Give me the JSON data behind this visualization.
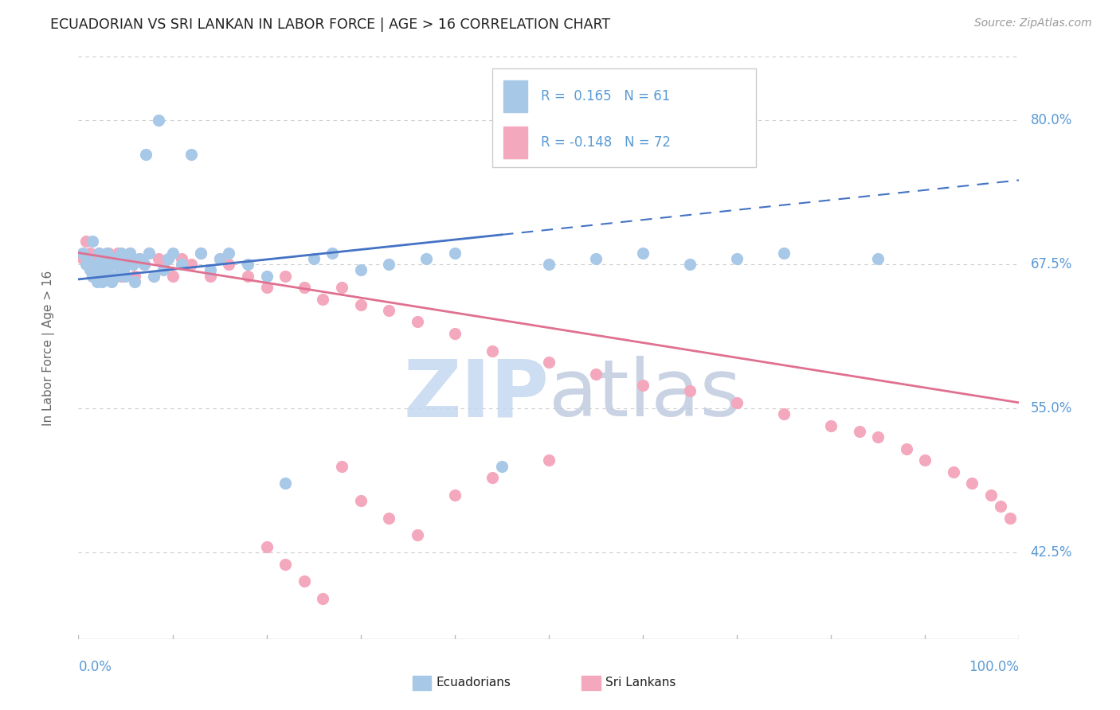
{
  "title": "ECUADORIAN VS SRI LANKAN IN LABOR FORCE | AGE > 16 CORRELATION CHART",
  "source_text": "Source: ZipAtlas.com",
  "ylabel": "In Labor Force | Age > 16",
  "xlim": [
    0.0,
    1.0
  ],
  "ylim": [
    0.35,
    0.855
  ],
  "yticks_vals": [
    0.425,
    0.55,
    0.675,
    0.8
  ],
  "ytick_labels": [
    "42.5%",
    "55.0%",
    "67.5%",
    "80.0%"
  ],
  "r_ecuador": 0.165,
  "n_ecuador": 61,
  "r_srilankan": -0.148,
  "n_srilankan": 72,
  "ecuador_color": "#a8c8e8",
  "srilankan_color": "#f4a8be",
  "trendline_ecuador_color": "#4472c4",
  "trendline_srilankan_color": "#e07090",
  "watermark_zip_color": "#c5d8f0",
  "watermark_atlas_color": "#c0cce0",
  "background_color": "#ffffff",
  "grid_color": "#cccccc",
  "axis_color": "#bbbbbb",
  "label_color": "#5b9bd5",
  "ylabel_color": "#666666",
  "title_color": "#222222",
  "source_color": "#999999",
  "legend_edge_color": "#cccccc",
  "ec_x": [
    0.005,
    0.008,
    0.01,
    0.012,
    0.015,
    0.015,
    0.018,
    0.02,
    0.02,
    0.022,
    0.025,
    0.025,
    0.028,
    0.03,
    0.03,
    0.032,
    0.035,
    0.035,
    0.038,
    0.04,
    0.04,
    0.042,
    0.045,
    0.048,
    0.05,
    0.052,
    0.055,
    0.058,
    0.06,
    0.065,
    0.07,
    0.072,
    0.075,
    0.08,
    0.085,
    0.09,
    0.095,
    0.1,
    0.11,
    0.12,
    0.13,
    0.14,
    0.15,
    0.16,
    0.18,
    0.2,
    0.22,
    0.25,
    0.27,
    0.3,
    0.33,
    0.37,
    0.4,
    0.45,
    0.5,
    0.55,
    0.6,
    0.65,
    0.7,
    0.75,
    0.85
  ],
  "ec_y": [
    0.685,
    0.675,
    0.68,
    0.67,
    0.665,
    0.695,
    0.67,
    0.66,
    0.675,
    0.685,
    0.66,
    0.68,
    0.665,
    0.67,
    0.685,
    0.675,
    0.66,
    0.675,
    0.68,
    0.665,
    0.675,
    0.68,
    0.685,
    0.67,
    0.665,
    0.68,
    0.685,
    0.675,
    0.66,
    0.68,
    0.675,
    0.77,
    0.685,
    0.665,
    0.8,
    0.67,
    0.68,
    0.685,
    0.675,
    0.77,
    0.685,
    0.67,
    0.68,
    0.685,
    0.675,
    0.665,
    0.485,
    0.68,
    0.685,
    0.67,
    0.675,
    0.68,
    0.685,
    0.5,
    0.675,
    0.68,
    0.685,
    0.675,
    0.68,
    0.685,
    0.68
  ],
  "sl_x": [
    0.005,
    0.008,
    0.01,
    0.012,
    0.015,
    0.018,
    0.02,
    0.022,
    0.025,
    0.028,
    0.03,
    0.032,
    0.035,
    0.038,
    0.04,
    0.042,
    0.045,
    0.048,
    0.05,
    0.055,
    0.06,
    0.065,
    0.07,
    0.075,
    0.08,
    0.085,
    0.09,
    0.1,
    0.11,
    0.12,
    0.13,
    0.14,
    0.15,
    0.16,
    0.18,
    0.2,
    0.22,
    0.24,
    0.26,
    0.28,
    0.3,
    0.33,
    0.36,
    0.4,
    0.44,
    0.5,
    0.55,
    0.6,
    0.65,
    0.7,
    0.75,
    0.8,
    0.83,
    0.85,
    0.88,
    0.9,
    0.93,
    0.95,
    0.97,
    0.98,
    0.99,
    0.2,
    0.22,
    0.24,
    0.26,
    0.28,
    0.3,
    0.33,
    0.36,
    0.4,
    0.44,
    0.5
  ],
  "sl_y": [
    0.68,
    0.695,
    0.675,
    0.685,
    0.665,
    0.68,
    0.675,
    0.685,
    0.665,
    0.68,
    0.675,
    0.685,
    0.665,
    0.68,
    0.675,
    0.685,
    0.665,
    0.68,
    0.675,
    0.685,
    0.665,
    0.68,
    0.675,
    0.685,
    0.665,
    0.68,
    0.675,
    0.665,
    0.68,
    0.675,
    0.685,
    0.665,
    0.68,
    0.675,
    0.665,
    0.655,
    0.665,
    0.655,
    0.645,
    0.655,
    0.64,
    0.635,
    0.625,
    0.615,
    0.6,
    0.59,
    0.58,
    0.57,
    0.565,
    0.555,
    0.545,
    0.535,
    0.53,
    0.525,
    0.515,
    0.505,
    0.495,
    0.485,
    0.475,
    0.465,
    0.455,
    0.43,
    0.415,
    0.4,
    0.385,
    0.5,
    0.47,
    0.455,
    0.44,
    0.475,
    0.49,
    0.505
  ],
  "trend_ec_x0": 0.0,
  "trend_ec_y0": 0.662,
  "trend_ec_x1": 1.0,
  "trend_ec_y1": 0.748,
  "trend_sl_x0": 0.0,
  "trend_sl_y0": 0.685,
  "trend_sl_x1": 1.0,
  "trend_sl_y1": 0.555
}
